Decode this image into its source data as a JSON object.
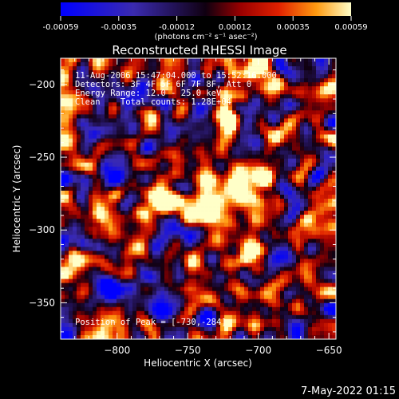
{
  "chart_data": {
    "type": "heatmap",
    "title": "Reconstructed RHESSI Image",
    "xlabel": "Heliocentric X (arcsec)",
    "ylabel": "Heliocentric Y (arcsec)",
    "xlim": [
      -840,
      -645
    ],
    "ylim": [
      -375,
      -182
    ],
    "xticks": [
      -800,
      -750,
      -700,
      -650
    ],
    "yticks": [
      -200,
      -250,
      -300,
      -350
    ],
    "colorbar": {
      "ticks": [
        "-0.00059",
        "-0.00035",
        "-0.00012",
        "0.00012",
        "0.00035",
        "0.00059"
      ],
      "unit_label": "(photons cm⁻² s⁻¹ asec⁻²)",
      "range": [
        -0.00059,
        0.00059
      ]
    },
    "annotations": {
      "time": "11-Aug-2006 15:47:04.000 to 15:52:16.000",
      "detectors": "Detectors: 3F 4F 5F 6F 7F 8F, Att 0",
      "energy": "Energy Range: 12.0 - 25.0 keV",
      "method": "Clean    Total counts: 1.28E+04",
      "peak": "Position of Peak = [-730,-284]"
    },
    "peak": {
      "x": -730,
      "y": -284
    }
  },
  "footer": {
    "date": "7-May-2022 01:15"
  }
}
